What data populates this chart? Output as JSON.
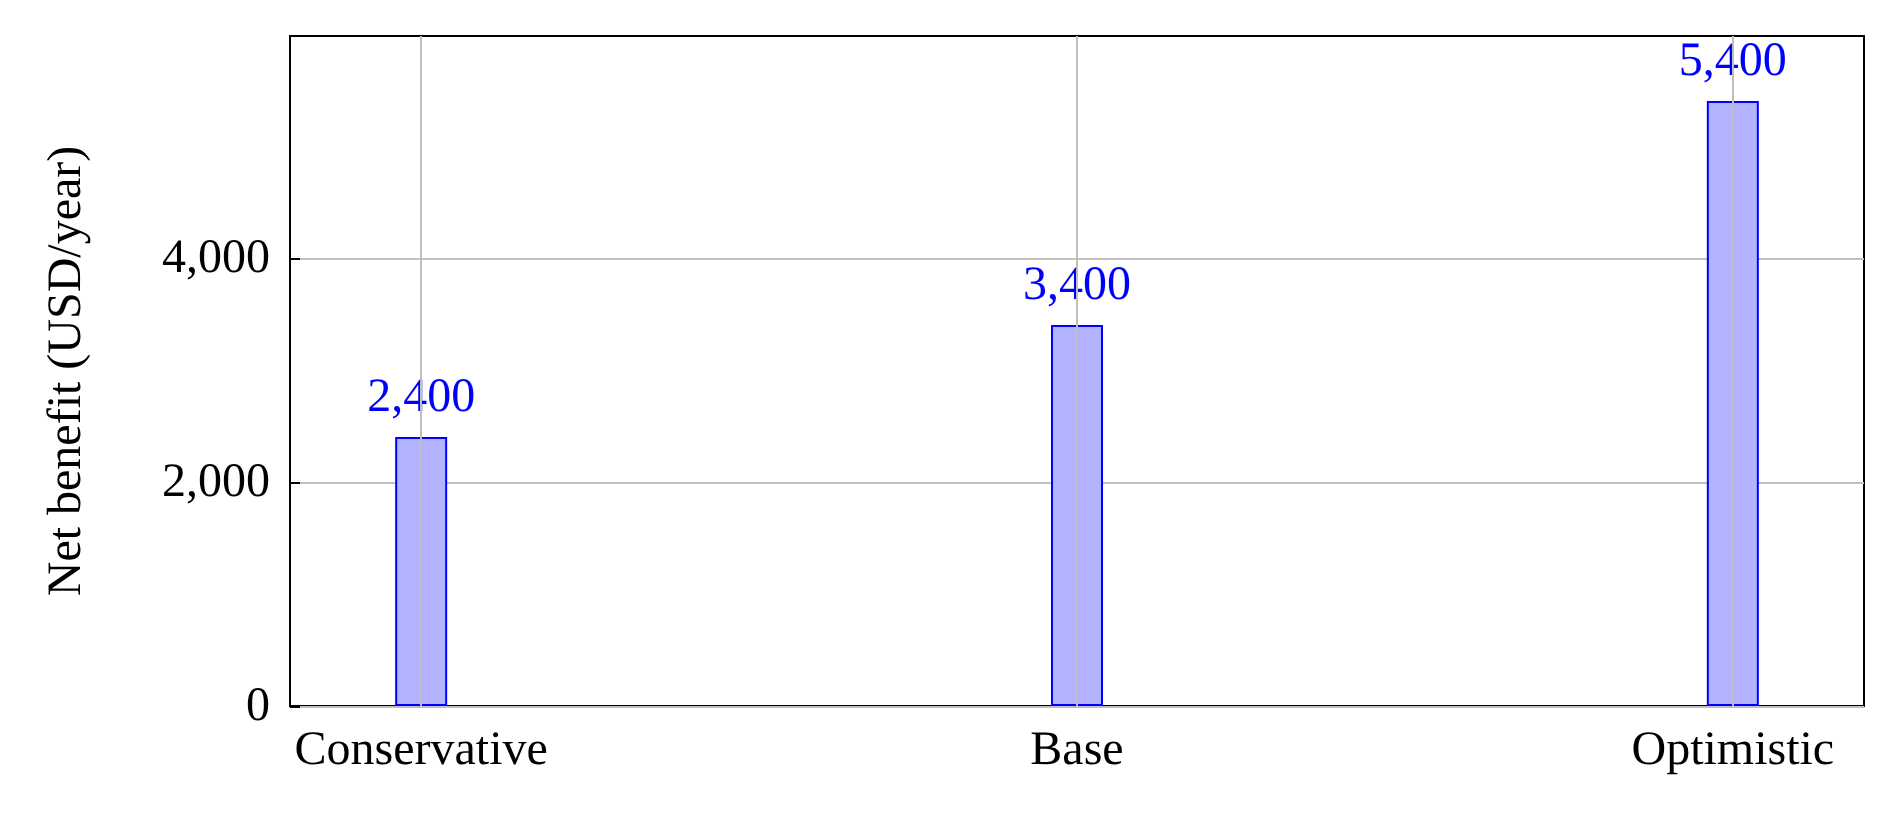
{
  "chart_data": {
    "type": "bar",
    "ylabel": "Net benefit (USD/year)",
    "categories": [
      "Conservative",
      "Base",
      "Optimistic"
    ],
    "values": [
      2400,
      3400,
      5400
    ],
    "value_labels": [
      "2,400",
      "3,400",
      "5,400"
    ],
    "color": "#b3b3ff",
    "ylim": [
      0,
      5980
    ],
    "yticks": [
      {
        "value": 0,
        "label": "0"
      },
      {
        "value": 2000,
        "label": "2,000"
      },
      {
        "value": 4000,
        "label": "4,000"
      }
    ],
    "grid": true
  }
}
